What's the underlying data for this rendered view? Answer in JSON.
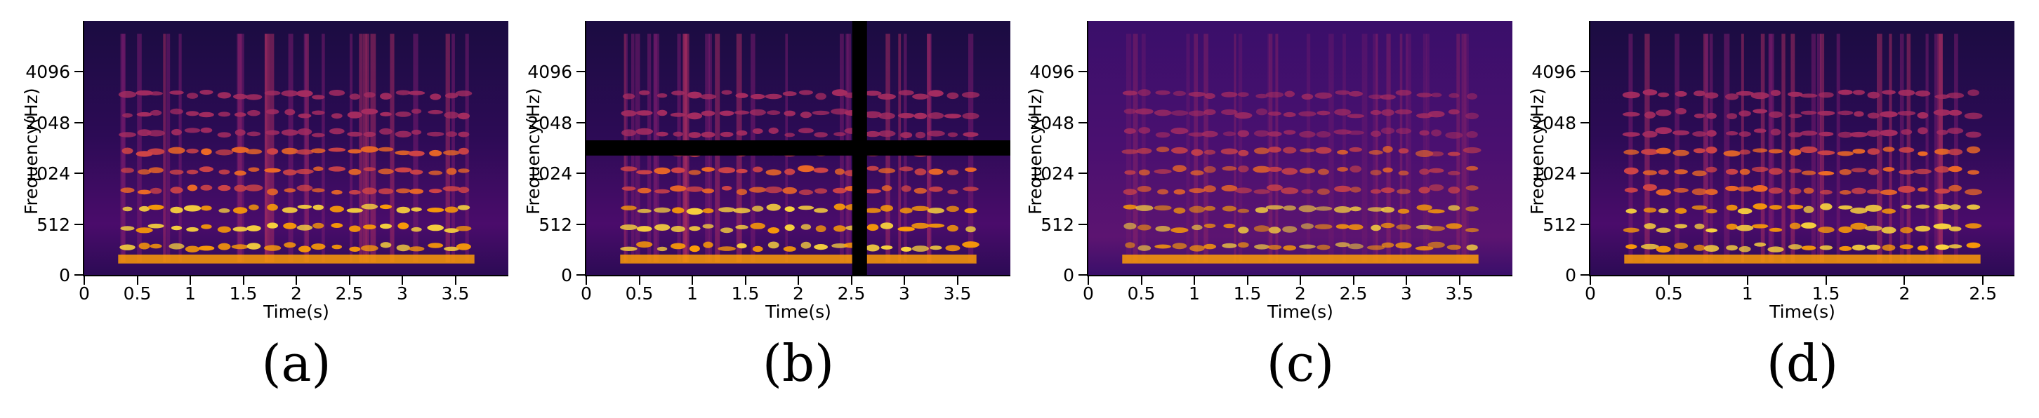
{
  "figure": {
    "panels": [
      {
        "id": "a",
        "caption": "(a)",
        "ylabel": "Frequency(Hz)",
        "xlabel": "Time(s)",
        "yticks": [
          "0",
          "512",
          "1024",
          "2048",
          "4096"
        ],
        "xticks": [
          "0",
          "0.5",
          "1",
          "1.5",
          "2",
          "2.5",
          "3",
          "3.5"
        ],
        "xmax": 4.0,
        "masked": false,
        "noisy": false
      },
      {
        "id": "b",
        "caption": "(b)",
        "ylabel": "Frequency(Hz)",
        "xlabel": "Time(s)",
        "yticks": [
          "0",
          "512",
          "1024",
          "2048",
          "4096"
        ],
        "xticks": [
          "0",
          "0.5",
          "1",
          "1.5",
          "2",
          "2.5",
          "3",
          "3.5"
        ],
        "xmax": 4.0,
        "masked": true,
        "noisy": false
      },
      {
        "id": "c",
        "caption": "(c)",
        "ylabel": "Frequency(Hz)",
        "xlabel": "Time(s)",
        "yticks": [
          "0",
          "512",
          "1024",
          "2048",
          "4096"
        ],
        "xticks": [
          "0",
          "0.5",
          "1",
          "1.5",
          "2",
          "2.5",
          "3",
          "3.5"
        ],
        "xmax": 4.0,
        "masked": false,
        "noisy": true
      },
      {
        "id": "d",
        "caption": "(d)",
        "ylabel": "Frequency(Hz)",
        "xlabel": "Time(s)",
        "yticks": [
          "0",
          "512",
          "1024",
          "2048",
          "4096"
        ],
        "xticks": [
          "0",
          "0.5",
          "1",
          "1.5",
          "2",
          "2.5"
        ],
        "xmax": 2.7,
        "masked": false,
        "noisy": false
      }
    ],
    "colormap": {
      "name": "magma",
      "colors": [
        "#000004",
        "#1b0c41",
        "#4a0c6b",
        "#781c6d",
        "#a52c60",
        "#cf4446",
        "#ed6925",
        "#fb9b06",
        "#f7d13d",
        "#fcffa4"
      ]
    }
  }
}
